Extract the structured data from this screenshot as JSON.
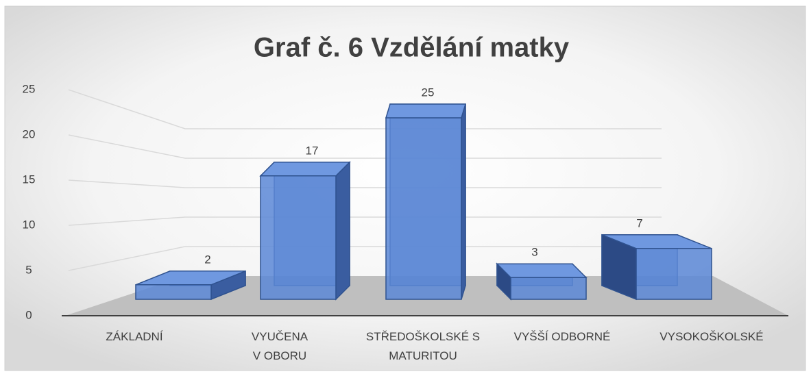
{
  "chart_data": {
    "type": "bar3d",
    "title": "Graf č. 6 Vzdělání matky",
    "categories": [
      "ZÁKLADNÍ",
      "VYUČENA\nV OBORU",
      "STŘEDOŠKOLSKÉ S\nMATURITOU",
      "VYŠŠÍ ODBORNÉ",
      "VYSOKOŠKOLSKÉ"
    ],
    "values": [
      2,
      17,
      25,
      3,
      7
    ],
    "color": "#4472c4",
    "ylim": [
      0,
      25
    ],
    "yticks": [
      0,
      5,
      10,
      15,
      20,
      25
    ],
    "grid": true
  }
}
